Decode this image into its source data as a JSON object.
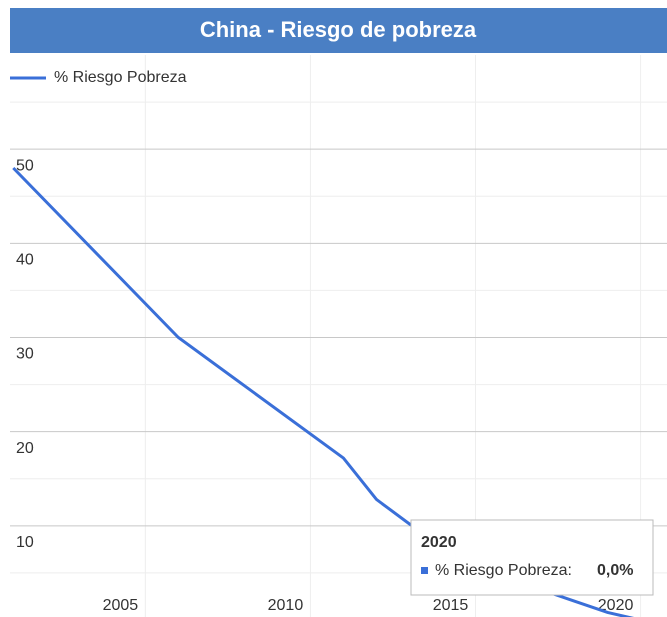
{
  "chart_data": {
    "type": "line",
    "title": "China - Riesgo de pobreza",
    "x": [
      2001,
      2006,
      2011,
      2012,
      2013,
      2014,
      2015,
      2016,
      2017,
      2018,
      2019,
      2020
    ],
    "series": [
      {
        "name": "% Riesgo Pobreza",
        "color": "#3a6fd8",
        "values": [
          48,
          30,
          17.2,
          12.8,
          10.2,
          8,
          6.2,
          4.6,
          3.2,
          2,
          0.8,
          0
        ]
      }
    ],
    "xlim": [
      2000.9,
      2020.8
    ],
    "xticks": [
      2005,
      2010,
      2015,
      2020
    ],
    "ylim": [
      0,
      60
    ],
    "yticks": [
      10,
      20,
      30,
      40,
      50
    ],
    "minor_yticks": [
      5,
      15,
      25,
      35,
      45,
      55
    ],
    "grid": true,
    "legend": "top-left",
    "tooltip": {
      "title": "2020",
      "label": "% Riesgo Pobreza:",
      "value": "0,0%"
    }
  }
}
